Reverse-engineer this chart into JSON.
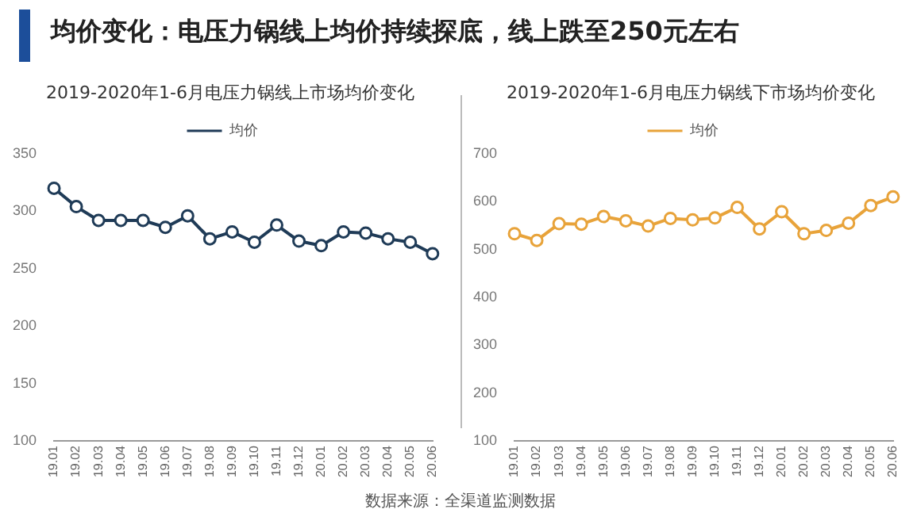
{
  "chart_data": [
    {
      "type": "line",
      "title": "2019-2020年1-6月电压力锅线上市场均价变化",
      "annotations": [
        "均价变化：电压力锅线上均价持续探底，线上跌至250元左右"
      ],
      "categories": [
        "19.01",
        "19.02",
        "19.03",
        "19.04",
        "19.05",
        "19.06",
        "19.07",
        "19.08",
        "19.09",
        "19.10",
        "19.11",
        "19.12",
        "20.01",
        "20.02",
        "20.03",
        "20.04",
        "20.05",
        "20.06"
      ],
      "series": [
        {
          "name": "均价",
          "color": "#1f3b57",
          "values": [
            320,
            304,
            292,
            292,
            292,
            286,
            296,
            276,
            282,
            273,
            288,
            274,
            270,
            282,
            281,
            276,
            273,
            263
          ]
        }
      ],
      "ylim": [
        100,
        350
      ],
      "yticks": [
        100,
        150,
        200,
        250,
        300,
        350
      ],
      "grid": false,
      "legend": "top",
      "marker": "circle",
      "line_style": "solid"
    },
    {
      "type": "line",
      "title": "2019-2020年1-6月电压力锅线下市场均价变化",
      "annotations": [
        "数据来源：全渠道监测数据"
      ],
      "categories": [
        "19.01",
        "19.02",
        "19.03",
        "19.04",
        "19.05",
        "19.06",
        "19.07",
        "19.08",
        "19.09",
        "19.10",
        "19.11",
        "19.12",
        "20.01",
        "20.02",
        "20.03",
        "20.04",
        "20.05",
        "20.06"
      ],
      "series": [
        {
          "name": "均价",
          "color": "#e8a33a",
          "values": [
            533,
            519,
            554,
            553,
            569,
            560,
            549,
            565,
            562,
            566,
            588,
            543,
            579,
            533,
            540,
            555,
            592,
            610
          ]
        }
      ],
      "ylim": [
        100,
        700
      ],
      "yticks": [
        100,
        200,
        300,
        400,
        500,
        600,
        700
      ],
      "grid": false,
      "legend": "top",
      "marker": "circle",
      "line_style": "solid"
    }
  ]
}
